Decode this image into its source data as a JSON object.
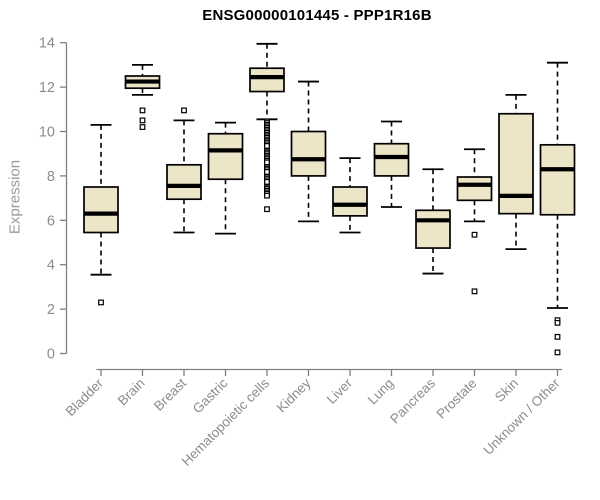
{
  "chart_data": {
    "type": "boxplot",
    "title": "ENSG00000101445 - PPP1R16B",
    "xlabel": "",
    "ylabel": "Expression",
    "ylim": [
      0,
      14
    ],
    "y_ticks": [
      0,
      2,
      4,
      6,
      8,
      10,
      12,
      14
    ],
    "grid": false,
    "legend": "none",
    "categories": [
      "Bladder",
      "Brain",
      "Breast",
      "Gastric",
      "Hematopoietic cells",
      "Kidney",
      "Liver",
      "Lung",
      "Pancreas",
      "Prostate",
      "Skin",
      "Unknown / Other"
    ],
    "series": [
      {
        "label": "Bladder",
        "low": 3.55,
        "q1": 5.45,
        "median": 6.3,
        "q3": 7.5,
        "high": 10.3,
        "outliers": [
          2.3
        ]
      },
      {
        "label": "Brain",
        "low": 11.65,
        "q1": 11.95,
        "median": 12.25,
        "q3": 12.5,
        "high": 13.0,
        "outliers": [
          10.95,
          10.5,
          10.2
        ]
      },
      {
        "label": "Breast",
        "low": 5.45,
        "q1": 6.95,
        "median": 7.55,
        "q3": 8.5,
        "high": 10.5,
        "outliers": [
          10.95
        ]
      },
      {
        "label": "Gastric",
        "low": 5.4,
        "q1": 7.85,
        "median": 9.15,
        "q3": 9.9,
        "high": 10.4,
        "outliers": []
      },
      {
        "label": "Hematopoietic cells",
        "low": 10.55,
        "q1": 11.8,
        "median": 12.45,
        "q3": 12.85,
        "high": 13.95,
        "outliers": [
          10.45,
          10.38,
          10.3,
          10.23,
          10.16,
          10.08,
          10.01,
          9.94,
          9.86,
          9.79,
          9.72,
          9.64,
          9.57,
          9.5,
          9.42,
          9.35,
          9.12,
          9.05,
          8.98,
          8.9,
          8.83,
          8.76,
          8.68,
          8.61,
          8.4,
          8.33,
          8.26,
          8.18,
          7.95,
          7.88,
          7.8,
          7.73,
          7.48,
          7.41,
          7.33,
          7.26,
          7.19,
          7.11,
          6.5
        ]
      },
      {
        "label": "Kidney",
        "low": 5.95,
        "q1": 8.0,
        "median": 8.75,
        "q3": 10.0,
        "high": 12.25,
        "outliers": []
      },
      {
        "label": "Liver",
        "low": 5.45,
        "q1": 6.2,
        "median": 6.7,
        "q3": 7.5,
        "high": 8.8,
        "outliers": []
      },
      {
        "label": "Lung",
        "low": 6.6,
        "q1": 8.0,
        "median": 8.85,
        "q3": 9.45,
        "high": 10.45,
        "outliers": []
      },
      {
        "label": "Pancreas",
        "low": 3.6,
        "q1": 4.75,
        "median": 6.0,
        "q3": 6.45,
        "high": 8.3,
        "outliers": []
      },
      {
        "label": "Prostate",
        "low": 5.95,
        "q1": 6.9,
        "median": 7.6,
        "q3": 7.95,
        "high": 9.2,
        "outliers": [
          5.35,
          2.8
        ]
      },
      {
        "label": "Skin",
        "low": 4.7,
        "q1": 6.3,
        "median": 7.1,
        "q3": 10.8,
        "high": 11.65,
        "outliers": []
      },
      {
        "label": "Unknown / Other",
        "low": 2.05,
        "q1": 6.25,
        "median": 8.3,
        "q3": 9.4,
        "high": 13.1,
        "outliers": [
          1.5,
          1.38,
          0.75,
          0.05
        ]
      }
    ],
    "colors": {
      "box_fill": "#ede5c7",
      "box_border": "#000000",
      "median": "#000000",
      "whisker": "#000000",
      "outlier": "#000000",
      "axis": "#7f7f7f",
      "tick_label": "#8c8c8c",
      "title": "#000000",
      "ylabel": "#9a9a9a",
      "background": "#ffffff"
    }
  }
}
